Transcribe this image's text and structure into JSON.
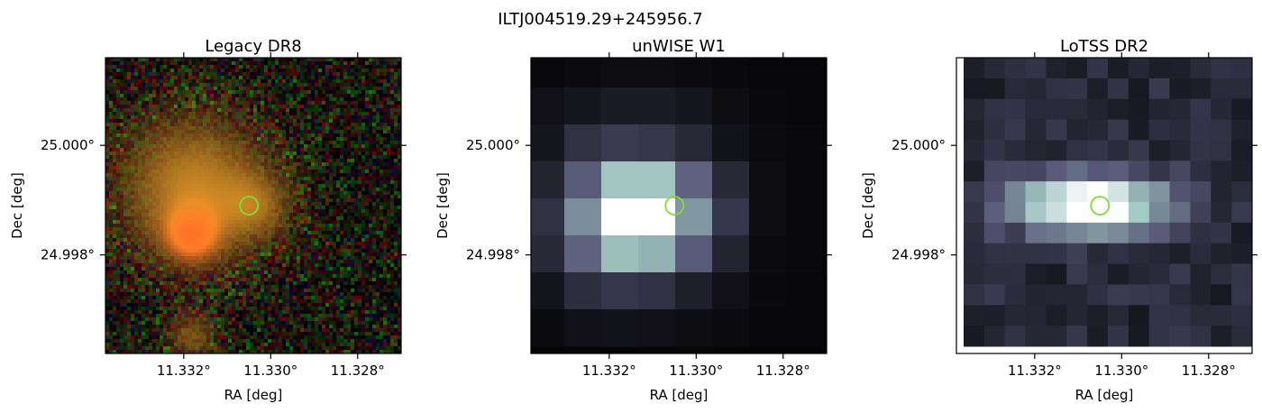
{
  "figure": {
    "suptitle": "ILTJ004519.29+245956.7"
  },
  "chart_data": [
    {
      "type": "heatmap",
      "title": "Legacy DR8",
      "xlabel": "RA [deg]",
      "ylabel": "Dec [deg]",
      "x_ticks": [
        {
          "value": 11.332,
          "label": "11.332°"
        },
        {
          "value": 11.33,
          "label": "11.330°"
        },
        {
          "value": 11.328,
          "label": "11.328°"
        }
      ],
      "y_ticks": [
        {
          "value": 25.0,
          "label": "25.000°"
        },
        {
          "value": 24.998,
          "label": "24.998°"
        }
      ],
      "xlim": [
        11.3338,
        11.327
      ],
      "ylim": [
        24.9962,
        25.0016
      ],
      "colormap": "rgb-composite",
      "marker": {
        "shape": "circle",
        "color": "#7fe032",
        "ra": 11.3305,
        "dec": 24.9989
      }
    },
    {
      "type": "heatmap",
      "title": "unWISE W1",
      "xlabel": "RA [deg]",
      "ylabel": "Dec [deg]",
      "x_ticks": [
        {
          "value": 11.332,
          "label": "11.332°"
        },
        {
          "value": 11.33,
          "label": "11.330°"
        },
        {
          "value": 11.328,
          "label": "11.328°"
        }
      ],
      "y_ticks": [
        {
          "value": 25.0,
          "label": "25.000°"
        },
        {
          "value": 24.998,
          "label": "24.998°"
        }
      ],
      "xlim": [
        11.3338,
        11.327
      ],
      "ylim": [
        24.9962,
        25.0016
      ],
      "colormap": "bone",
      "marker": {
        "shape": "circle",
        "color": "#7fe032",
        "ra": 11.3305,
        "dec": 24.9989
      }
    },
    {
      "type": "heatmap",
      "title": "LoTSS DR2",
      "xlabel": "RA [deg]",
      "ylabel": "Dec [deg]",
      "x_ticks": [
        {
          "value": 11.332,
          "label": "11.332°"
        },
        {
          "value": 11.33,
          "label": "11.330°"
        },
        {
          "value": 11.328,
          "label": "11.328°"
        }
      ],
      "y_ticks": [
        {
          "value": 25.0,
          "label": "25.000°"
        },
        {
          "value": 24.998,
          "label": "24.998°"
        }
      ],
      "xlim": [
        11.3338,
        11.327
      ],
      "ylim": [
        24.9962,
        25.0016
      ],
      "colormap": "bone",
      "marker": {
        "shape": "circle",
        "color": "#7fe032",
        "ra": 11.3305,
        "dec": 24.9989
      }
    }
  ]
}
